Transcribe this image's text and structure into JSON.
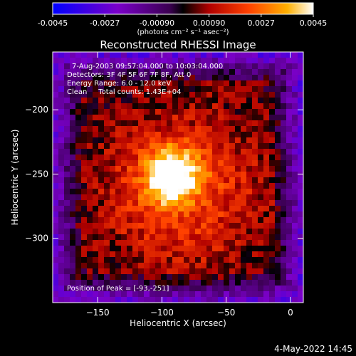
{
  "chart_data": {
    "type": "heatmap",
    "title": "Reconstructed RHESSI Image",
    "xlabel": "Heliocentric X (arcsec)",
    "ylabel": "Heliocentric Y (arcsec)",
    "xlim": [
      -185,
      10
    ],
    "ylim": [
      -350,
      -155
    ],
    "x_ticks": [
      -150,
      -100,
      -50,
      0
    ],
    "y_ticks": [
      -200,
      -250,
      -300
    ],
    "colorbar": {
      "range": [
        -0.0045,
        0.0045
      ],
      "ticks": [
        "-0.0045",
        "-0.0027",
        "-0.00090",
        "0.00090",
        "0.0027",
        "0.0045"
      ],
      "unit_label": "(photons cm⁻² s⁻¹ asec⁻²)"
    },
    "peak": {
      "x": -93,
      "y": -251,
      "value": 0.0045
    },
    "annotations": [
      "7-Aug-2003 09:57:04.000 to 10:03:04.000",
      "Detectors: 3F 4F 5F 6F 7F 8F, Att 0",
      "Energy Range: 6.0 - 12.0 keV",
      "Clean     Total counts: 1.43E+04"
    ],
    "peak_label": "Position of Peak = [-93,-251]"
  },
  "timestamp": "4-May-2022 14:45"
}
